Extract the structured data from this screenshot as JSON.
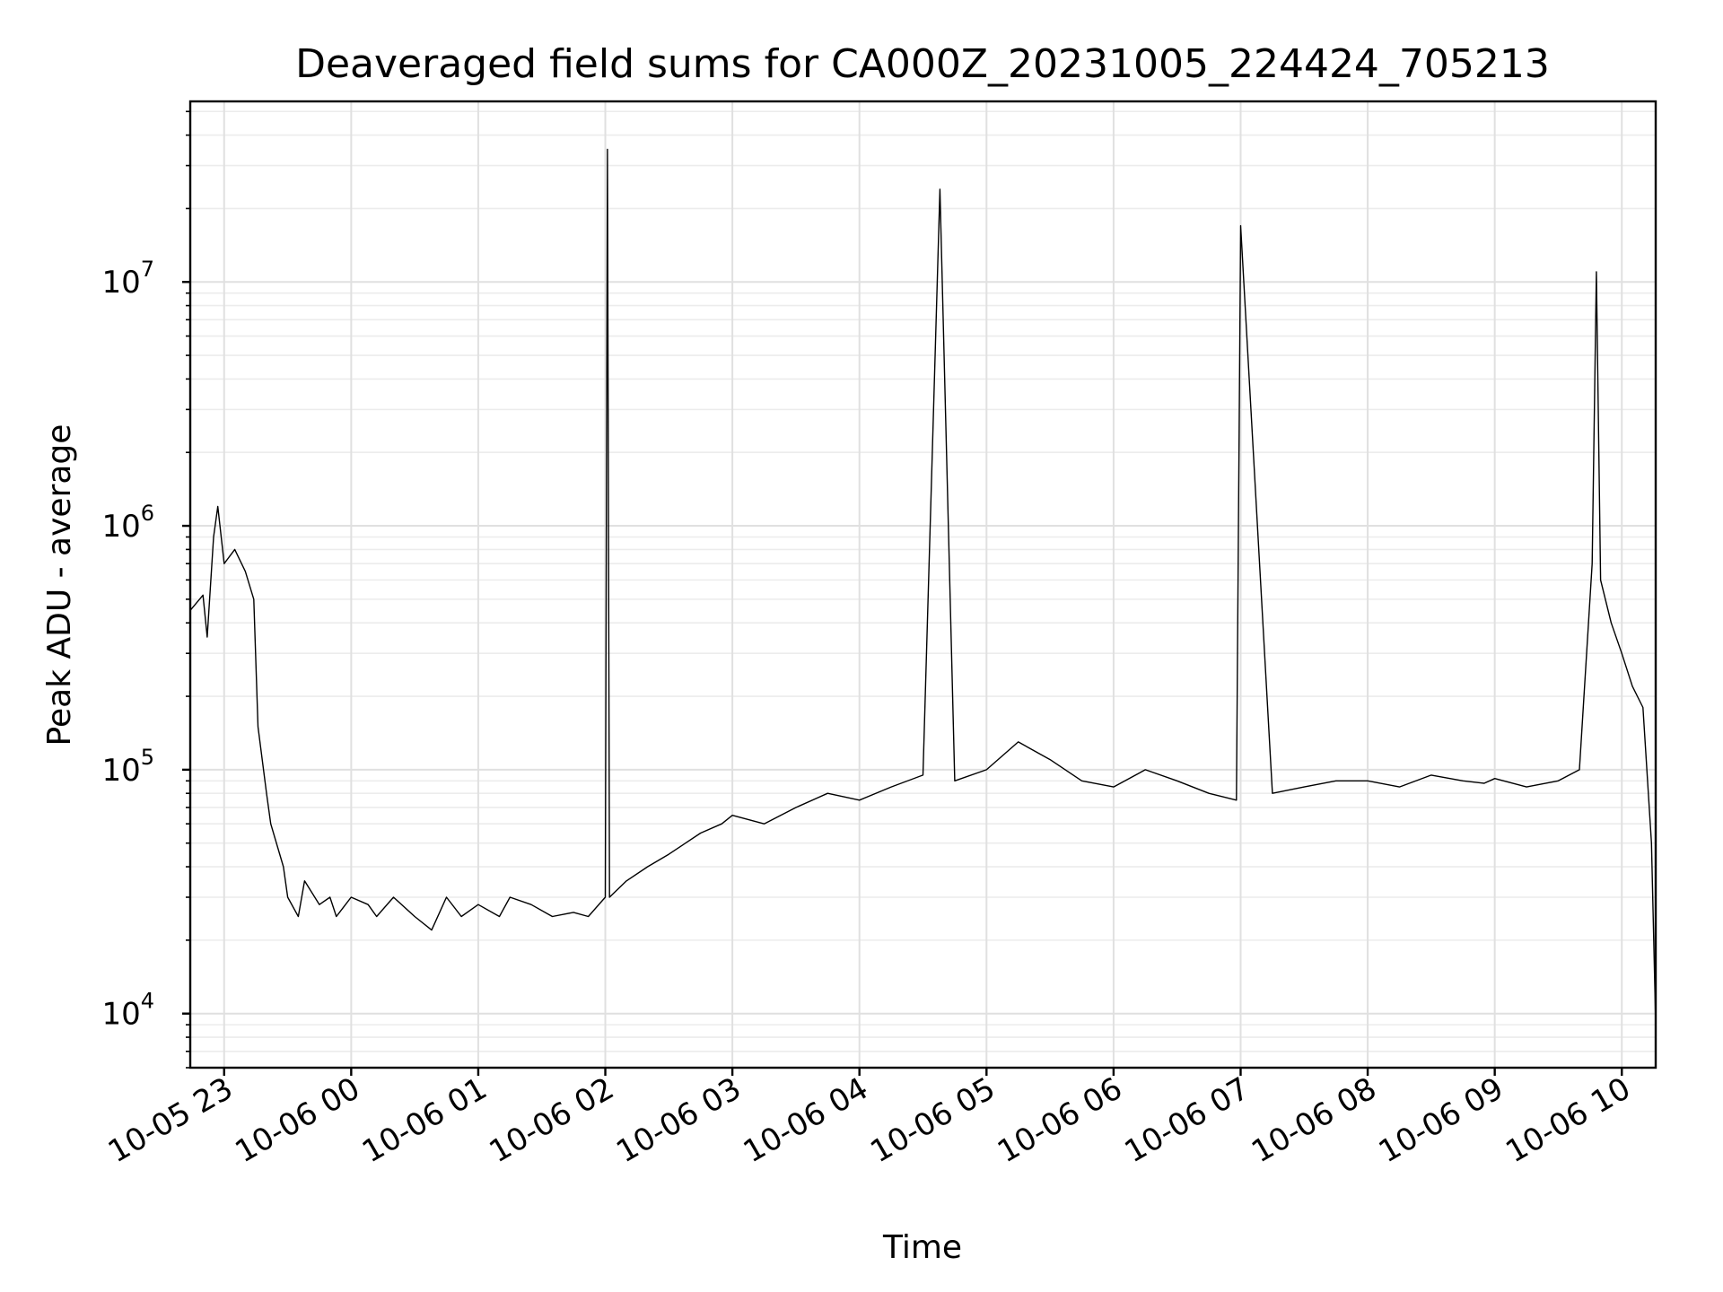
{
  "chart_data": {
    "type": "line",
    "title": "Deaveraged field sums for CA000Z_20231005_224424_705213",
    "xlabel": "Time",
    "ylabel": "Peak ADU - average",
    "yscale": "log",
    "grid": true,
    "color": "#000000",
    "xlim": [
      "2023-10-05 22:44",
      "2023-10-06 10:16"
    ],
    "ylim": [
      6000,
      55000000
    ],
    "x_ticks": [
      {
        "t": "2023-10-05 23:00",
        "label": "10-05 23"
      },
      {
        "t": "2023-10-06 00:00",
        "label": "10-06 00"
      },
      {
        "t": "2023-10-06 01:00",
        "label": "10-06 01"
      },
      {
        "t": "2023-10-06 02:00",
        "label": "10-06 02"
      },
      {
        "t": "2023-10-06 03:00",
        "label": "10-06 03"
      },
      {
        "t": "2023-10-06 04:00",
        "label": "10-06 04"
      },
      {
        "t": "2023-10-06 05:00",
        "label": "10-06 05"
      },
      {
        "t": "2023-10-06 06:00",
        "label": "10-06 06"
      },
      {
        "t": "2023-10-06 07:00",
        "label": "10-06 07"
      },
      {
        "t": "2023-10-06 08:00",
        "label": "10-06 08"
      },
      {
        "t": "2023-10-06 09:00",
        "label": "10-06 09"
      },
      {
        "t": "2023-10-06 10:00",
        "label": "10-06 10"
      }
    ],
    "y_ticks": [
      {
        "value": 10000,
        "base": "10",
        "exp": "4"
      },
      {
        "value": 100000,
        "base": "10",
        "exp": "5"
      },
      {
        "value": 1000000,
        "base": "10",
        "exp": "6"
      },
      {
        "value": 10000000,
        "base": "10",
        "exp": "7"
      }
    ],
    "series": [
      {
        "x": [
          "2023-10-05 22:44",
          "2023-10-05 22:50",
          "2023-10-05 22:52",
          "2023-10-05 22:55",
          "2023-10-05 22:57",
          "2023-10-05 23:00",
          "2023-10-05 23:05",
          "2023-10-05 23:10",
          "2023-10-05 23:14",
          "2023-10-05 23:16",
          "2023-10-05 23:20",
          "2023-10-05 23:22",
          "2023-10-05 23:28",
          "2023-10-05 23:30",
          "2023-10-05 23:35",
          "2023-10-05 23:38",
          "2023-10-05 23:45",
          "2023-10-05 23:50",
          "2023-10-05 23:53",
          "2023-10-06 00:00",
          "2023-10-06 00:08",
          "2023-10-06 00:12",
          "2023-10-06 00:20",
          "2023-10-06 00:30",
          "2023-10-06 00:38",
          "2023-10-06 00:45",
          "2023-10-06 00:52",
          "2023-10-06 01:00",
          "2023-10-06 01:10",
          "2023-10-06 01:15",
          "2023-10-06 01:25",
          "2023-10-06 01:35",
          "2023-10-06 01:45",
          "2023-10-06 01:52",
          "2023-10-06 02:00",
          "2023-10-06 02:01",
          "2023-10-06 02:02",
          "2023-10-06 02:10",
          "2023-10-06 02:20",
          "2023-10-06 02:30",
          "2023-10-06 02:45",
          "2023-10-06 02:55",
          "2023-10-06 03:00",
          "2023-10-06 03:15",
          "2023-10-06 03:30",
          "2023-10-06 03:45",
          "2023-10-06 04:00",
          "2023-10-06 04:15",
          "2023-10-06 04:30",
          "2023-10-06 04:38",
          "2023-10-06 04:45",
          "2023-10-06 05:00",
          "2023-10-06 05:15",
          "2023-10-06 05:30",
          "2023-10-06 05:45",
          "2023-10-06 06:00",
          "2023-10-06 06:15",
          "2023-10-06 06:30",
          "2023-10-06 06:45",
          "2023-10-06 06:58",
          "2023-10-06 07:00",
          "2023-10-06 07:15",
          "2023-10-06 07:30",
          "2023-10-06 07:45",
          "2023-10-06 08:00",
          "2023-10-06 08:15",
          "2023-10-06 08:30",
          "2023-10-06 08:45",
          "2023-10-06 08:55",
          "2023-10-06 09:00",
          "2023-10-06 09:15",
          "2023-10-06 09:30",
          "2023-10-06 09:40",
          "2023-10-06 09:46",
          "2023-10-06 09:48",
          "2023-10-06 09:50",
          "2023-10-06 09:55",
          "2023-10-06 10:00",
          "2023-10-06 10:05",
          "2023-10-06 10:10",
          "2023-10-06 10:14",
          "2023-10-06 10:16"
        ],
        "y": [
          450000,
          520000,
          350000,
          900000,
          1200000,
          700000,
          800000,
          650000,
          500000,
          150000,
          80000,
          60000,
          40000,
          30000,
          25000,
          35000,
          28000,
          30000,
          25000,
          30000,
          28000,
          25000,
          30000,
          25000,
          22000,
          30000,
          25000,
          28000,
          25000,
          30000,
          28000,
          25000,
          26000,
          25000,
          30000,
          35000000,
          30000,
          35000,
          40000,
          45000,
          55000,
          60000,
          65000,
          60000,
          70000,
          80000,
          75000,
          85000,
          95000,
          24000000,
          90000,
          100000,
          130000,
          110000,
          90000,
          85000,
          100000,
          90000,
          80000,
          75000,
          17000000,
          80000,
          85000,
          90000,
          90000,
          85000,
          95000,
          90000,
          88000,
          92000,
          85000,
          90000,
          100000,
          700000,
          11000000,
          600000,
          400000,
          300000,
          220000,
          180000,
          50000,
          9000
        ]
      }
    ]
  }
}
